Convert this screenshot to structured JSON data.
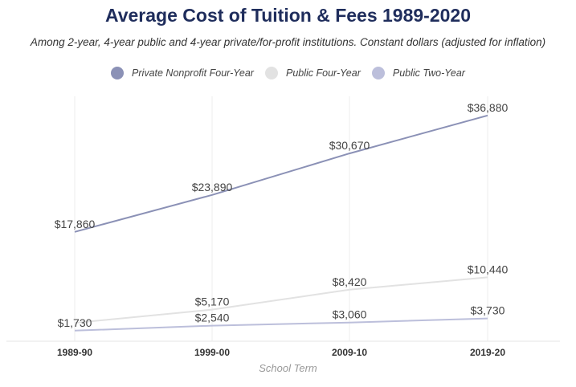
{
  "chart_data": {
    "type": "line",
    "title": "Average Cost of Tuition & Fees 1989-2020",
    "subtitle": "Among 2-year, 4-year public and 4-year private/for-profit institutions. Constant dollars (adjusted for inflation)",
    "xlabel": "School Term",
    "ylabel": "",
    "categories": [
      "1989-90",
      "1999-00",
      "2009-10",
      "2019-20"
    ],
    "ylim": [
      0,
      40000
    ],
    "grid": "vertical",
    "legend_position": "top",
    "series": [
      {
        "name": "Private Nonprofit Four-Year",
        "values": [
          17860,
          23890,
          30670,
          36880
        ],
        "labels": [
          "$17,860",
          "$23,890",
          "$30,670",
          "$36,880"
        ],
        "color": "#8b91b6"
      },
      {
        "name": "Public Four-Year",
        "values": [
          3000,
          5170,
          8420,
          10440
        ],
        "labels": [
          "",
          "$5,170",
          "$8,420",
          "$10,440"
        ],
        "color": "#e2e2e2"
      },
      {
        "name": "Public Two-Year",
        "values": [
          1730,
          2540,
          3060,
          3730
        ],
        "labels": [
          "$1,730",
          "$2,540",
          "$3,060",
          "$3,730"
        ],
        "color": "#bcbfdb"
      }
    ]
  }
}
